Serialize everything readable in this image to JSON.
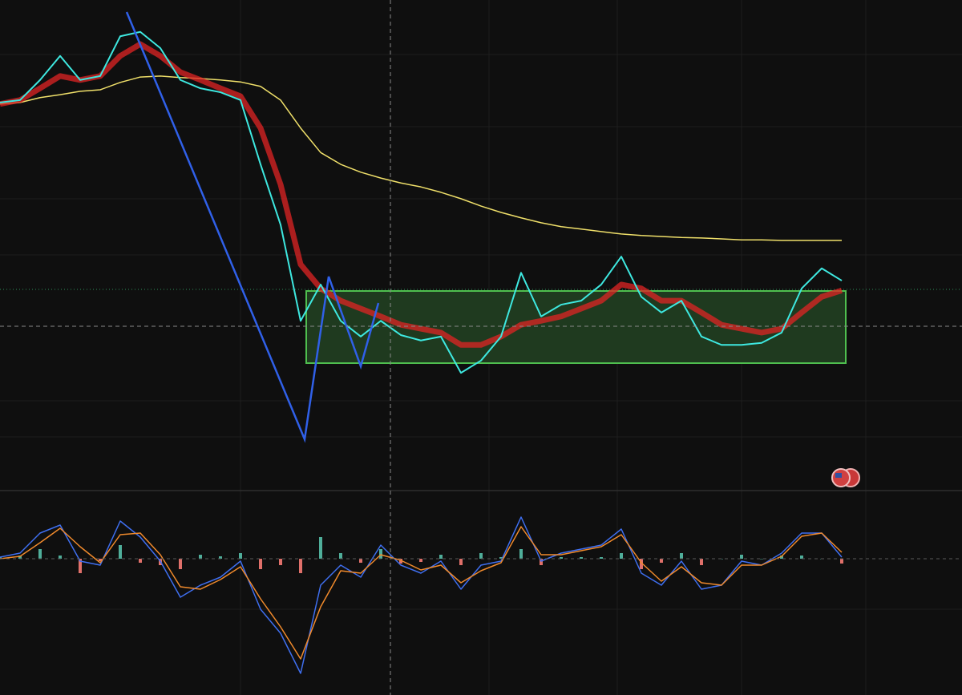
{
  "chart_data": [
    {
      "type": "line",
      "x": [
        0,
        1,
        2,
        3,
        4,
        5,
        6,
        7,
        8,
        9,
        10,
        11,
        12,
        13,
        14,
        15,
        16,
        17,
        18,
        19,
        20,
        21,
        22,
        23,
        24,
        25,
        26,
        27,
        28,
        29,
        30,
        31,
        32,
        33,
        34,
        35,
        36,
        37,
        38,
        39,
        40,
        41,
        42
      ],
      "xlim": [
        0,
        48
      ],
      "ylim": [
        0,
        100
      ],
      "series": [
        {
          "color": "#f0e06a",
          "width": 1.5,
          "values": [
            78.8,
            79.1,
            80.1,
            80.7,
            81.4,
            81.7,
            83.2,
            84.3,
            84.5,
            84.2,
            84.0,
            83.7,
            83.3,
            82.4,
            79.6,
            73.9,
            68.9,
            66.5,
            64.9,
            63.7,
            62.7,
            61.9,
            60.8,
            59.5,
            58.0,
            56.7,
            55.6,
            54.6,
            53.8,
            53.3,
            52.8,
            52.3,
            52.0,
            51.8,
            51.6,
            51.5,
            51.3,
            51.1,
            51.1,
            51.0,
            51.0,
            51.0,
            51.0
          ]
        },
        {
          "color": "#e02424",
          "width": 7,
          "values": [
            78.8,
            79.6,
            82.0,
            84.5,
            83.7,
            84.5,
            88.6,
            91.0,
            88.6,
            85.3,
            83.7,
            82.0,
            80.4,
            73.9,
            62.4,
            46.1,
            41.2,
            38.7,
            37.1,
            35.5,
            33.8,
            33.0,
            32.2,
            29.7,
            29.7,
            31.4,
            33.8,
            34.6,
            35.5,
            37.1,
            38.7,
            42.0,
            41.2,
            38.7,
            38.7,
            36.3,
            33.8,
            33.0,
            32.2,
            33.0,
            36.3,
            39.5,
            40.8
          ]
        },
        {
          "color": "#3ee8e0",
          "width": 2,
          "values": [
            79.1,
            79.6,
            83.7,
            88.6,
            83.7,
            84.5,
            92.6,
            93.5,
            90.2,
            83.7,
            82.0,
            81.2,
            79.6,
            66.5,
            54.2,
            34.6,
            42.0,
            34.6,
            31.4,
            34.6,
            31.7,
            30.6,
            31.4,
            24.0,
            26.5,
            31.4,
            44.4,
            35.5,
            37.9,
            38.7,
            42.0,
            47.7,
            39.5,
            36.3,
            38.7,
            31.4,
            29.7,
            29.7,
            30.1,
            32.2,
            41.2,
            45.3,
            42.8
          ]
        }
      ]
    },
    {
      "type": "line",
      "x": [
        0,
        1,
        2,
        3,
        4,
        5,
        6,
        7,
        8,
        9,
        10,
        11,
        12,
        13,
        14,
        15,
        16,
        17,
        18,
        19,
        20,
        21,
        22,
        23,
        24,
        25,
        26,
        27,
        28,
        29,
        30,
        31,
        32,
        33,
        34,
        35,
        36,
        37,
        38,
        39,
        40,
        41,
        42
      ],
      "xlim": [
        0,
        48
      ],
      "ylim": [
        -1.7,
        0.85
      ],
      "series": [
        {
          "type": "bar",
          "color": "#4fae9a",
          "negative_color": "#e0706a",
          "values": [
            0.02,
            0.04,
            0.12,
            0.04,
            -0.18,
            -0.03,
            0.17,
            -0.05,
            -0.08,
            -0.13,
            0.05,
            0.03,
            0.07,
            -0.13,
            -0.08,
            -0.18,
            0.27,
            0.07,
            -0.05,
            0.12,
            -0.06,
            -0.04,
            0.05,
            -0.08,
            0.07,
            0.02,
            0.12,
            -0.08,
            0.02,
            0.02,
            0.02,
            0.07,
            -0.13,
            -0.05,
            0.07,
            -0.08,
            0.0,
            0.05,
            0.0,
            0.04,
            0.04,
            0.0,
            -0.06
          ]
        },
        {
          "color": "#3f6ff0",
          "width": 1.5,
          "values": [
            0.02,
            0.07,
            0.32,
            0.42,
            -0.03,
            -0.08,
            0.47,
            0.27,
            -0.03,
            -0.48,
            -0.33,
            -0.23,
            -0.03,
            -0.63,
            -0.93,
            -1.43,
            -0.33,
            -0.08,
            -0.23,
            0.17,
            -0.08,
            -0.18,
            -0.03,
            -0.38,
            -0.08,
            -0.03,
            0.52,
            -0.03,
            0.07,
            0.12,
            0.17,
            0.37,
            -0.18,
            -0.33,
            -0.03,
            -0.38,
            -0.33,
            -0.03,
            -0.08,
            0.07,
            0.32,
            0.32,
            0.02
          ]
        },
        {
          "color": "#f08a2c",
          "width": 1.5,
          "values": [
            0.0,
            0.03,
            0.2,
            0.38,
            0.15,
            -0.05,
            0.3,
            0.32,
            0.05,
            -0.35,
            -0.38,
            -0.26,
            -0.1,
            -0.5,
            -0.85,
            -1.25,
            -0.6,
            -0.15,
            -0.18,
            0.05,
            -0.02,
            -0.14,
            -0.08,
            -0.3,
            -0.15,
            -0.05,
            0.4,
            0.05,
            0.05,
            0.1,
            0.15,
            0.3,
            -0.05,
            -0.28,
            -0.1,
            -0.3,
            -0.33,
            -0.08,
            -0.08,
            0.03,
            0.28,
            0.32,
            0.08
          ]
        }
      ]
    }
  ]
}
